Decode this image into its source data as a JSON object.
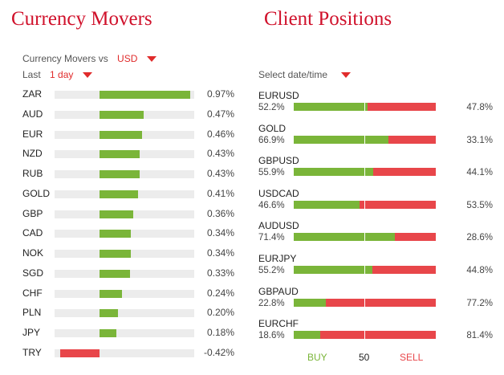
{
  "movers": {
    "title": "Currency Movers",
    "vs_label": "Currency Movers vs",
    "vs_value": "USD",
    "period_label": "Last",
    "period_value": "1 day",
    "rows": [
      {
        "label": "ZAR",
        "value": "0.97%",
        "pct": 0.97
      },
      {
        "label": "AUD",
        "value": "0.47%",
        "pct": 0.47
      },
      {
        "label": "EUR",
        "value": "0.46%",
        "pct": 0.46
      },
      {
        "label": "NZD",
        "value": "0.43%",
        "pct": 0.43
      },
      {
        "label": "RUB",
        "value": "0.43%",
        "pct": 0.43
      },
      {
        "label": "GOLD",
        "value": "0.41%",
        "pct": 0.41
      },
      {
        "label": "GBP",
        "value": "0.36%",
        "pct": 0.36
      },
      {
        "label": "CAD",
        "value": "0.34%",
        "pct": 0.34
      },
      {
        "label": "NOK",
        "value": "0.34%",
        "pct": 0.34
      },
      {
        "label": "SGD",
        "value": "0.33%",
        "pct": 0.33
      },
      {
        "label": "CHF",
        "value": "0.24%",
        "pct": 0.24
      },
      {
        "label": "PLN",
        "value": "0.20%",
        "pct": 0.2
      },
      {
        "label": "JPY",
        "value": "0.18%",
        "pct": 0.18
      },
      {
        "label": "TRY",
        "value": "-0.42%",
        "pct": -0.42
      }
    ]
  },
  "positions": {
    "title": "Client Positions",
    "select_label": "Select date/time",
    "rows": [
      {
        "pair": "EURUSD",
        "buy": "52.2%",
        "sell": "47.8%",
        "buy_frac": 0.522
      },
      {
        "pair": "GOLD",
        "buy": "66.9%",
        "sell": "33.1%",
        "buy_frac": 0.669
      },
      {
        "pair": "GBPUSD",
        "buy": "55.9%",
        "sell": "44.1%",
        "buy_frac": 0.559
      },
      {
        "pair": "USDCAD",
        "buy": "46.6%",
        "sell": "53.5%",
        "buy_frac": 0.466
      },
      {
        "pair": "AUDUSD",
        "buy": "71.4%",
        "sell": "28.6%",
        "buy_frac": 0.714
      },
      {
        "pair": "EURJPY",
        "buy": "55.2%",
        "sell": "44.8%",
        "buy_frac": 0.552
      },
      {
        "pair": "GBPAUD",
        "buy": "22.8%",
        "sell": "77.2%",
        "buy_frac": 0.228
      },
      {
        "pair": "EURCHF",
        "buy": "18.6%",
        "sell": "81.4%",
        "buy_frac": 0.186
      }
    ],
    "footer": {
      "buy": "BUY",
      "mid": "50",
      "sell": "SELL"
    }
  },
  "colors": {
    "title": "#d0112b",
    "buy": "#7ab539",
    "sell": "#e8464a",
    "track": "#ececec"
  }
}
